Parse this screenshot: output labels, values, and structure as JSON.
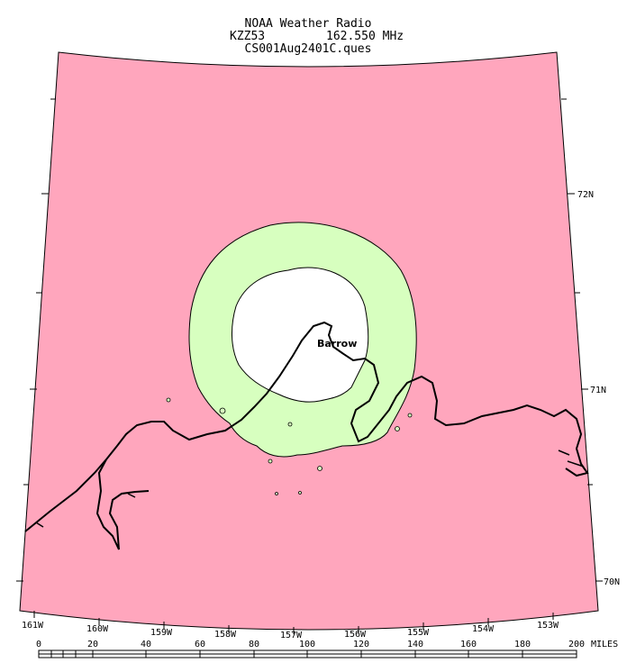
{
  "title": {
    "line1": "NOAA Weather Radio",
    "call_sign": "KZZ53",
    "frequency": "162.550 MHz",
    "line3": "CS001Aug2401C.ques"
  },
  "place_label": "Barrow",
  "latitude_labels": [
    "72N",
    "71N",
    "70N"
  ],
  "longitude_labels": [
    "161W",
    "160W",
    "159W",
    "158W",
    "157W",
    "156W",
    "155W",
    "154W",
    "153W"
  ],
  "scale_bar": {
    "ticks": [
      "0",
      "20",
      "40",
      "60",
      "80",
      "100",
      "120",
      "140",
      "160",
      "180",
      "200"
    ],
    "unit": "MILES"
  },
  "colors": {
    "no_coverage": "#ffa6bd",
    "fringe_coverage": "#d7ffbf",
    "strong_coverage": "#ffffff",
    "coast": "#000000"
  }
}
